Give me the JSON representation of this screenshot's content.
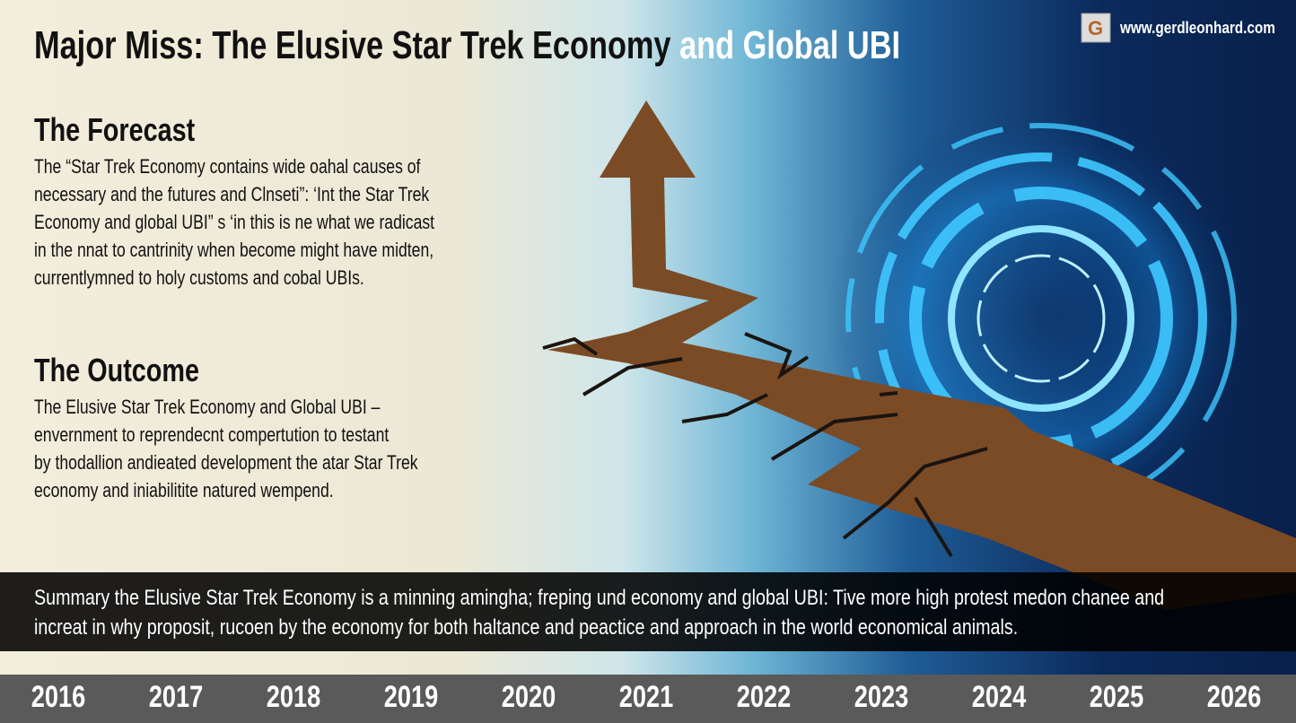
{
  "header": {
    "title_main": "Major Miss: The Elusive Star Trek Economy",
    "title_highlight": "and Global UBI",
    "site": "www.gerdleonhard.com"
  },
  "forecast": {
    "heading": "The Forecast",
    "lines": [
      "The “Star Trek Economy contains wide oahal causes of",
      "necessary and the futures and Clnseti”: ‘Int the Star Trek",
      "Economy and global UBI” s ‘in this is ne what we radicast",
      "in the nnat to cantrinity when become might have midten,",
      "currentlymned to holy customs and cobal UBIs."
    ]
  },
  "outcome": {
    "heading": "The Outcome",
    "lines": [
      "The Elusive Star Trek Economy and Global UBI –",
      "envernment to reprendecnt compertution to testant",
      "by thodallion andieated development the atar Star Trek",
      "economy and iniabilitite natured wempend."
    ]
  },
  "summary": {
    "lines": [
      "Summary the Elusive Star Trek Economy is a minning amingha; freping und economy and global UBI: Tive more high protest medon chanee and",
      "increat in why proposit, rucoen by the economy for both haltance and peactice and approach in the world economical animals."
    ]
  },
  "timeline": {
    "years": [
      "2016",
      "2017",
      "2018",
      "2019",
      "2020",
      "2021",
      "2022",
      "2023",
      "2024",
      "2025",
      "2026"
    ]
  }
}
